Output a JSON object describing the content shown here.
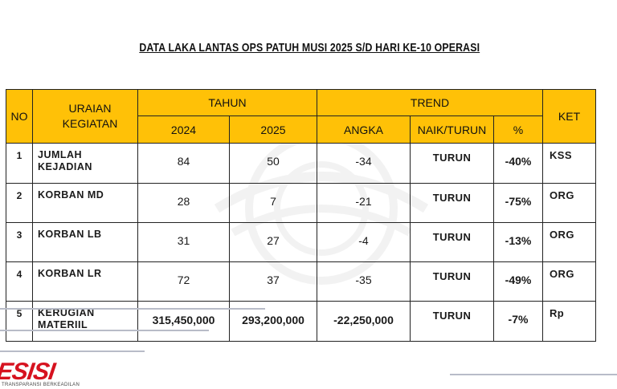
{
  "title": "DATA LAKA LANTAS OPS PATUH MUSI 2025 S/D HARI KE-10 OPERASI",
  "table": {
    "headers": {
      "no": "NO",
      "uraian": "URAIAN KEGIATAN",
      "tahun": "TAHUN",
      "year_2024": "2024",
      "year_2025": "2025",
      "trend": "TREND",
      "angka": "ANGKA",
      "naik_turun": "NAIK/TURUN",
      "percent": "%",
      "ket": "KET"
    },
    "rows": [
      {
        "no": "1",
        "uraian": "JUMLAH KEJADIAN",
        "y2024": "84",
        "y2025": "50",
        "angka": "-34",
        "trend": "TURUN",
        "pct": "-40%",
        "ket": "KSS"
      },
      {
        "no": "2",
        "uraian": "KORBAN MD",
        "y2024": "28",
        "y2025": "7",
        "angka": "-21",
        "trend": "TURUN",
        "pct": "-75%",
        "ket": "ORG"
      },
      {
        "no": "3",
        "uraian": "KORBAN LB",
        "y2024": "31",
        "y2025": "27",
        "angka": "-4",
        "trend": "TURUN",
        "pct": "-13%",
        "ket": "ORG"
      },
      {
        "no": "4",
        "uraian": "KORBAN LR",
        "y2024": "72",
        "y2025": "37",
        "angka": "-35",
        "trend": "TURUN",
        "pct": "-49%",
        "ket": "ORG"
      },
      {
        "no": "5",
        "uraian": "KERUGIAN MATERIIL",
        "y2024": "315,450,000",
        "y2025": "293,200,000",
        "angka": "-22,250,000",
        "trend": "TURUN",
        "pct": "-7%",
        "ket": "Rp"
      }
    ]
  },
  "footer": {
    "logo_text": "ESISI",
    "tagline": "TRANSPARANSI BERKEADILAN"
  },
  "colors": {
    "header_bg": "#ffc107",
    "logo_red": "#d6121f"
  }
}
